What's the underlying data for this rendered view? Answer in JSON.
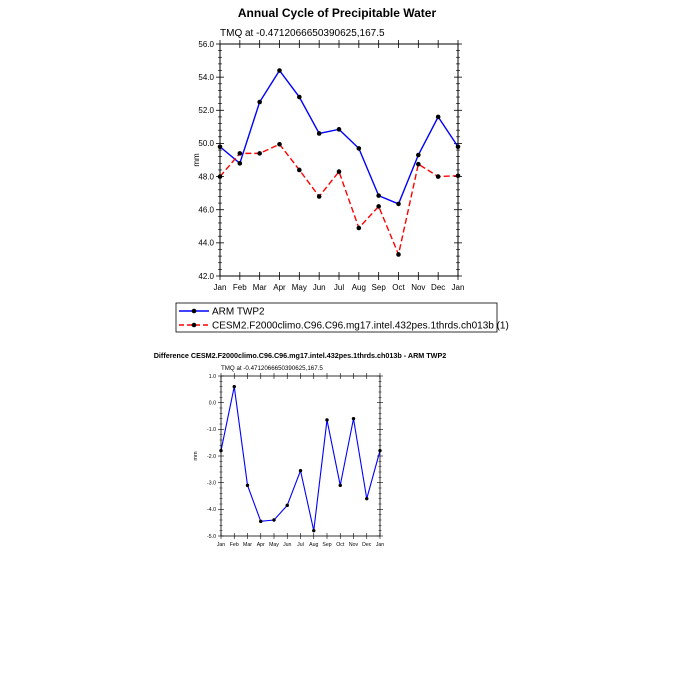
{
  "chart_data": [
    {
      "type": "line",
      "title": "Annual Cycle of Precipitable Water",
      "subtitle": "TMQ at -0.4712066650390625,167.5",
      "ylabel": "mm",
      "xlabel": "",
      "ylim": [
        42.0,
        56.0
      ],
      "yticks": [
        "42.0",
        "44.0",
        "46.0",
        "48.0",
        "50.0",
        "52.0",
        "54.0",
        "56.0"
      ],
      "categories": [
        "Jan",
        "Feb",
        "Mar",
        "Apr",
        "May",
        "Jun",
        "Jul",
        "Aug",
        "Sep",
        "Oct",
        "Nov",
        "Dec",
        "Jan"
      ],
      "series": [
        {
          "name": "ARM TWP2",
          "color": "#0000ff",
          "dash": "solid",
          "values": [
            49.8,
            48.8,
            52.5,
            54.4,
            52.8,
            50.6,
            50.85,
            49.7,
            46.85,
            46.35,
            49.3,
            51.6,
            49.8
          ]
        },
        {
          "name": "CESM2.F2000climo.C96.C96.mg17.intel.432pes.1thrds.ch013b (1)",
          "color": "#ff0000",
          "dash": "dashed",
          "values": [
            48.0,
            49.4,
            49.4,
            49.95,
            48.4,
            46.8,
            48.3,
            44.9,
            46.2,
            43.3,
            48.75,
            48.0,
            48.05
          ]
        }
      ]
    },
    {
      "type": "line",
      "title": "Difference CESM2.F2000climo.C96.C96.mg17.intel.432pes.1thrds.ch013b - ARM TWP2",
      "subtitle": "TMQ at -0.4712066650390625,167.5",
      "ylabel": "mm",
      "xlabel": "",
      "ylim": [
        -5.0,
        1.0
      ],
      "yticks": [
        "-5.0",
        "-4.0",
        "-3.0",
        "-2.0",
        "-1.0",
        "0.0",
        "1.0"
      ],
      "categories": [
        "Jan",
        "Feb",
        "Mar",
        "Apr",
        "May",
        "Jun",
        "Jul",
        "Aug",
        "Sep",
        "Oct",
        "Nov",
        "Dec",
        "Jan"
      ],
      "series": [
        {
          "name": "Difference",
          "color": "#0000ff",
          "dash": "solid",
          "values": [
            -1.8,
            0.6,
            -3.1,
            -4.45,
            -4.4,
            -3.85,
            -2.55,
            -4.8,
            -0.65,
            -3.1,
            -0.6,
            -3.6,
            -1.8
          ]
        }
      ]
    }
  ]
}
